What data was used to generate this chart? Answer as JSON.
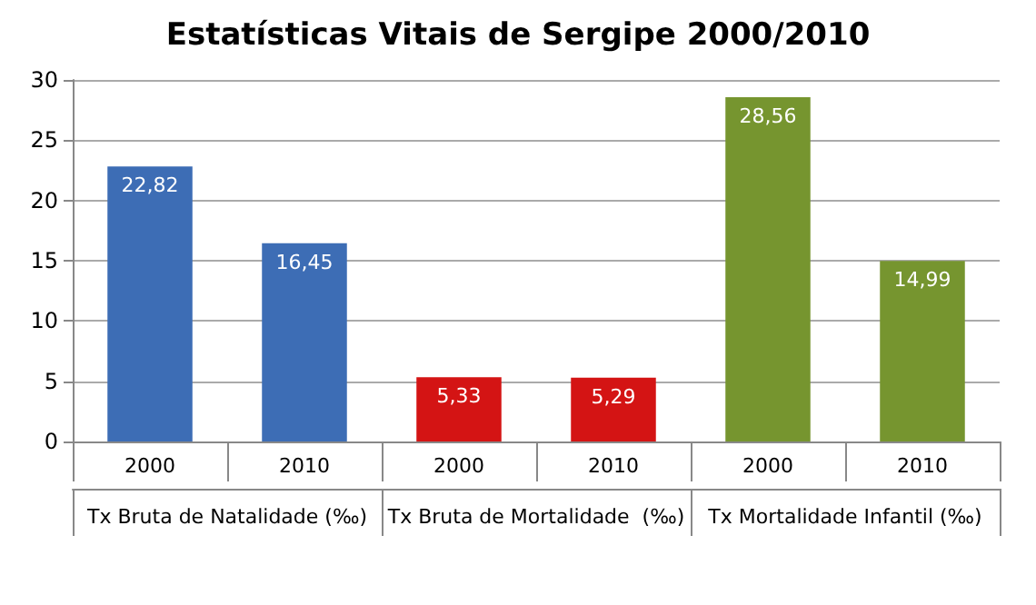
{
  "chart_data": {
    "type": "bar",
    "title": "Estatísticas Vitais de Sergipe 2000/2010",
    "categories": [
      "2000",
      "2010",
      "2000",
      "2010",
      "2000",
      "2010"
    ],
    "values": [
      22.82,
      16.45,
      5.33,
      5.29,
      28.56,
      14.99
    ],
    "colors": [
      "#3d6db5",
      "#3d6db5",
      "#d41414",
      "#d41414",
      "#76952f",
      "#76952f"
    ],
    "value_labels": [
      "22,82",
      "16,45",
      "5,33",
      "5,29",
      "28,56",
      "14,99"
    ],
    "annotations": [
      "Tx Bruta de Natalidade (‰)",
      "Tx Bruta de Mortalidade  (‰)",
      "Tx Mortalidade Infantil (‰)"
    ],
    "ylim": [
      0,
      30
    ],
    "yticks": [
      0,
      5,
      10,
      15,
      20,
      25,
      30
    ],
    "grid": "y"
  }
}
